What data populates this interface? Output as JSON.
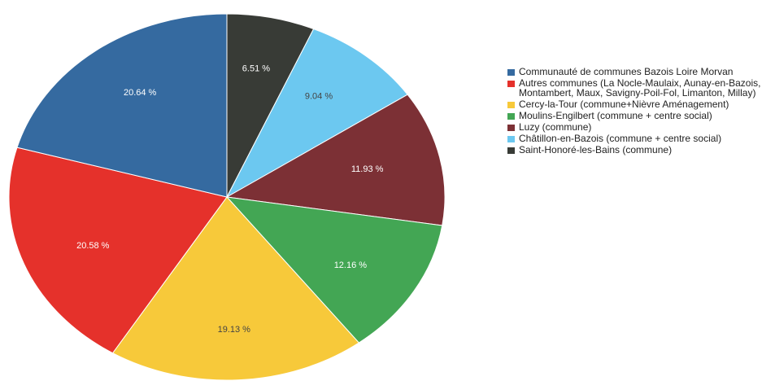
{
  "chart_data": {
    "type": "pie",
    "slices": [
      {
        "label": "Communauté de communes Bazois Loire Morvan",
        "value": 20.64,
        "value_label": "20.64 %",
        "color": "#356aa0"
      },
      {
        "label": "Autres communes (La Nocle-Maulaix, Aunay-en-Bazois, Montambert, Maux, Savigny-Poil-Fol, Limanton, Millay)",
        "value": 20.58,
        "value_label": "20.58 %",
        "color": "#e5312b"
      },
      {
        "label": "Cercy-la-Tour (commune+Nièvre Aménagement)",
        "value": 19.13,
        "value_label": "19.13 %",
        "color": "#f7c93a"
      },
      {
        "label": "Moulins-Engilbert (commune + centre social)",
        "value": 12.16,
        "value_label": "12.16 %",
        "color": "#43a654"
      },
      {
        "label": "Luzy (commune)",
        "value": 11.93,
        "value_label": "11.93 %",
        "color": "#7c3035"
      },
      {
        "label": "Châtillon-en-Bazois (commune + centre social)",
        "value": 9.04,
        "value_label": "9.04 %",
        "color": "#6cc8f0"
      },
      {
        "label": "Saint-Honoré-les-Bains (commune)",
        "value": 6.51,
        "value_label": "6.51 %",
        "color": "#383b36"
      }
    ],
    "legend_order": [
      0,
      1,
      2,
      3,
      4,
      5,
      6
    ],
    "legend_position": "right"
  }
}
